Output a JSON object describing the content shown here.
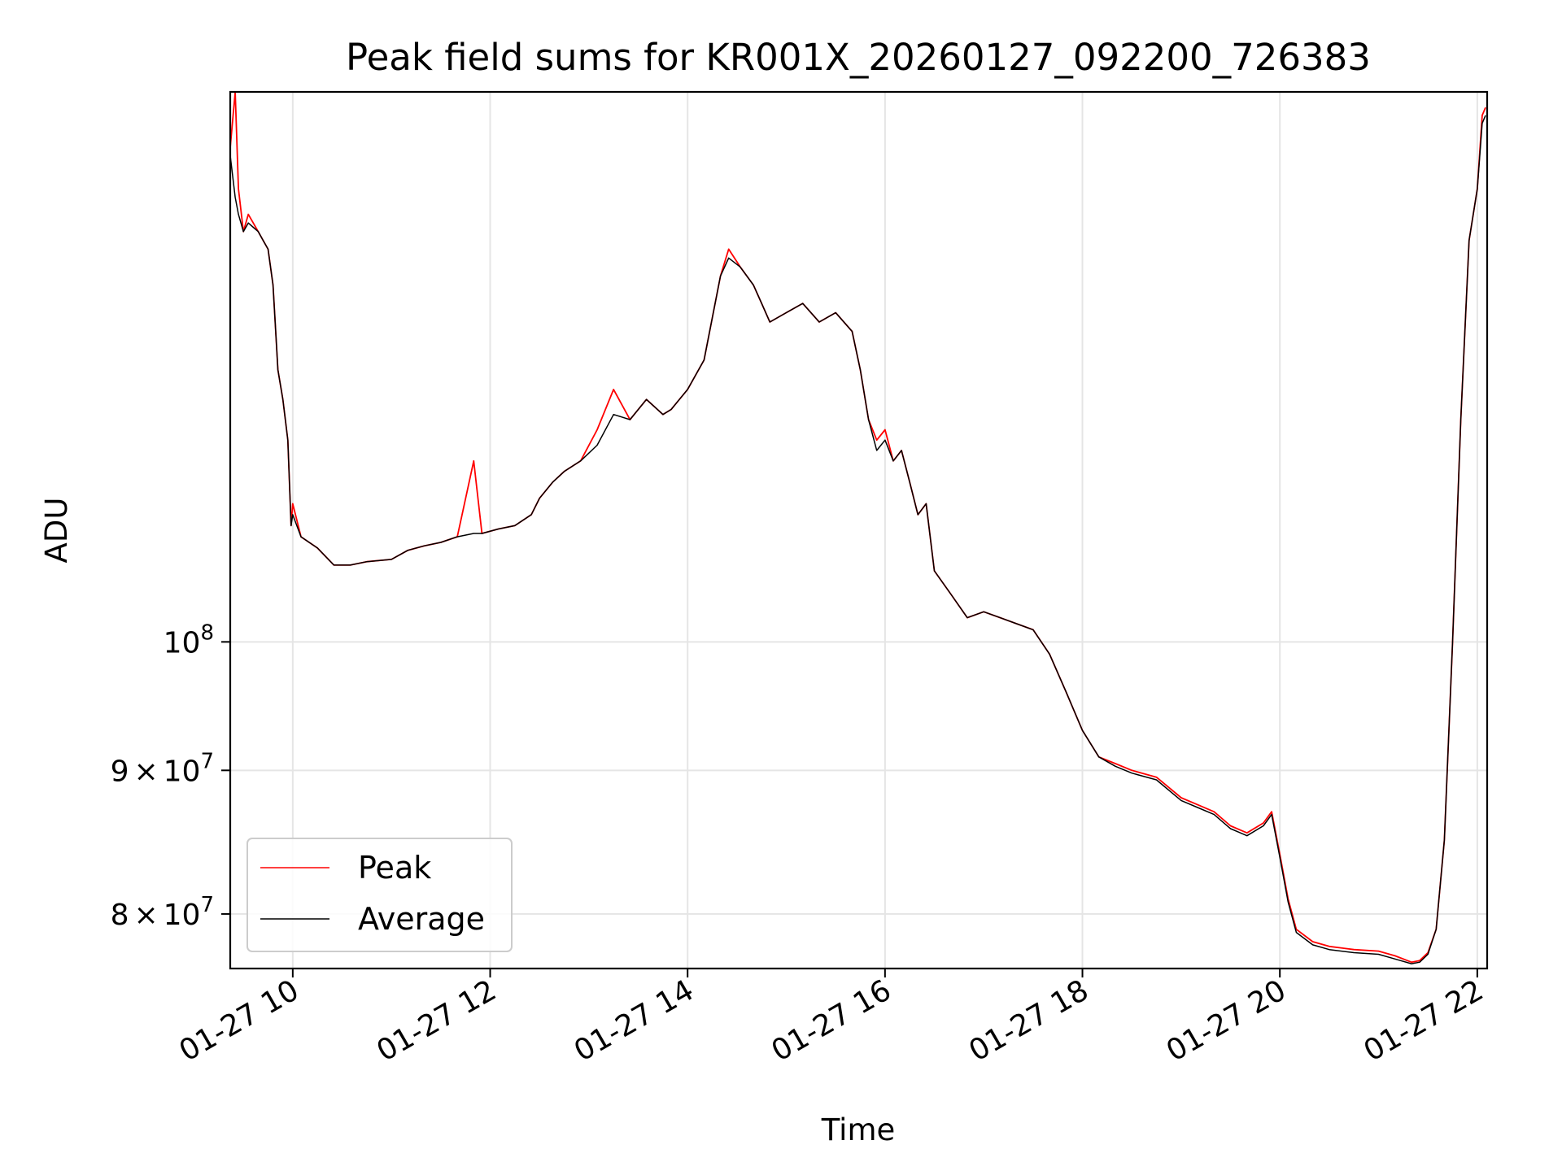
{
  "chart_data": {
    "type": "line",
    "title": "Peak field sums for KR001X_20260127_092200_726383",
    "xlabel": "Time",
    "ylabel": "ADU",
    "x_type": "time",
    "xlim": [
      "2026-01-27 09:22",
      "2026-01-27 22:06"
    ],
    "x_ticks": [
      {
        "at": "2026-01-27 10:00",
        "label": "01-27 10"
      },
      {
        "at": "2026-01-27 12:00",
        "label": "01-27 12"
      },
      {
        "at": "2026-01-27 14:00",
        "label": "01-27 14"
      },
      {
        "at": "2026-01-27 16:00",
        "label": "01-27 16"
      },
      {
        "at": "2026-01-27 18:00",
        "label": "01-27 18"
      },
      {
        "at": "2026-01-27 20:00",
        "label": "01-27 20"
      },
      {
        "at": "2026-01-27 22:00",
        "label": "01-27 22"
      }
    ],
    "y_scale": "log",
    "ylim": [
      76500000,
      157000000
    ],
    "y_ticks": [
      {
        "value": 80000000,
        "mantissa": "8",
        "base": "10",
        "exponent": "7"
      },
      {
        "value": 90000000,
        "mantissa": "9",
        "base": "10",
        "exponent": "7"
      },
      {
        "value": 100000000,
        "mantissa": "",
        "base": "10",
        "exponent": "8"
      }
    ],
    "grid": true,
    "legend": {
      "position": "lower-left"
    },
    "colors": {
      "peak": "#ff0000",
      "average": "#000000",
      "grid": "#e5e5e5"
    },
    "x": [
      "2026-01-27 09:22",
      "2026-01-27 09:25",
      "2026-01-27 09:27",
      "2026-01-27 09:30",
      "2026-01-27 09:33",
      "2026-01-27 09:36",
      "2026-01-27 09:39",
      "2026-01-27 09:42",
      "2026-01-27 09:45",
      "2026-01-27 09:48",
      "2026-01-27 09:51",
      "2026-01-27 09:54",
      "2026-01-27 09:57",
      "2026-01-27 09:59",
      "2026-01-27 10:00",
      "2026-01-27 10:05",
      "2026-01-27 10:15",
      "2026-01-27 10:25",
      "2026-01-27 10:35",
      "2026-01-27 10:45",
      "2026-01-27 11:00",
      "2026-01-27 11:10",
      "2026-01-27 11:20",
      "2026-01-27 11:30",
      "2026-01-27 11:40",
      "2026-01-27 11:50",
      "2026-01-27 11:55",
      "2026-01-27 12:05",
      "2026-01-27 12:15",
      "2026-01-27 12:25",
      "2026-01-27 12:30",
      "2026-01-27 12:38",
      "2026-01-27 12:45",
      "2026-01-27 12:55",
      "2026-01-27 13:05",
      "2026-01-27 13:15",
      "2026-01-27 13:25",
      "2026-01-27 13:35",
      "2026-01-27 13:45",
      "2026-01-27 13:50",
      "2026-01-27 13:55",
      "2026-01-27 14:00",
      "2026-01-27 14:10",
      "2026-01-27 14:20",
      "2026-01-27 14:25",
      "2026-01-27 14:32",
      "2026-01-27 14:40",
      "2026-01-27 14:45",
      "2026-01-27 14:50",
      "2026-01-27 15:00",
      "2026-01-27 15:10",
      "2026-01-27 15:20",
      "2026-01-27 15:30",
      "2026-01-27 15:40",
      "2026-01-27 15:45",
      "2026-01-27 15:50",
      "2026-01-27 15:55",
      "2026-01-27 16:00",
      "2026-01-27 16:05",
      "2026-01-27 16:10",
      "2026-01-27 16:15",
      "2026-01-27 16:20",
      "2026-01-27 16:25",
      "2026-01-27 16:30",
      "2026-01-27 16:40",
      "2026-01-27 16:50",
      "2026-01-27 17:00",
      "2026-01-27 17:10",
      "2026-01-27 17:20",
      "2026-01-27 17:30",
      "2026-01-27 17:40",
      "2026-01-27 17:50",
      "2026-01-27 18:00",
      "2026-01-27 18:10",
      "2026-01-27 18:20",
      "2026-01-27 18:30",
      "2026-01-27 18:45",
      "2026-01-27 19:00",
      "2026-01-27 19:10",
      "2026-01-27 19:20",
      "2026-01-27 19:30",
      "2026-01-27 19:40",
      "2026-01-27 19:50",
      "2026-01-27 19:55",
      "2026-01-27 20:00",
      "2026-01-27 20:05",
      "2026-01-27 20:10",
      "2026-01-27 20:20",
      "2026-01-27 20:30",
      "2026-01-27 20:45",
      "2026-01-27 21:00",
      "2026-01-27 21:10",
      "2026-01-27 21:20",
      "2026-01-27 21:25",
      "2026-01-27 21:30",
      "2026-01-27 21:35",
      "2026-01-27 21:40",
      "2026-01-27 21:45",
      "2026-01-27 21:50",
      "2026-01-27 21:55",
      "2026-01-27 22:00",
      "2026-01-27 22:03",
      "2026-01-27 22:05"
    ],
    "series": [
      {
        "name": "Peak",
        "color": "#ff0000",
        "values": [
          150000000,
          157000000,
          145000000,
          140000000,
          142000000,
          141000000,
          140000000,
          139000000,
          138000000,
          134000000,
          125000000,
          122000000,
          118000000,
          110000000,
          112000000,
          109000000,
          108000000,
          106500000,
          106500000,
          106800000,
          107000000,
          107800000,
          108200000,
          108500000,
          109000000,
          116000000,
          109300000,
          109700000,
          110000000,
          111000000,
          112500000,
          114000000,
          115000000,
          116000000,
          119000000,
          123000000,
          120000000,
          122000000,
          120500000,
          121000000,
          122000000,
          123000000,
          126000000,
          135000000,
          138000000,
          136000000,
          134000000,
          132000000,
          130000000,
          131000000,
          132000000,
          130000000,
          131000000,
          129000000,
          125000000,
          120000000,
          118000000,
          119000000,
          116000000,
          117000000,
          114000000,
          111000000,
          112000000,
          106000000,
          104000000,
          102000000,
          102500000,
          102000000,
          101500000,
          101000000,
          99000000,
          96000000,
          93000000,
          91000000,
          90500000,
          90000000,
          89500000,
          88000000,
          87500000,
          87000000,
          86000000,
          85500000,
          86200000,
          87000000,
          84000000,
          81000000,
          79000000,
          78200000,
          77900000,
          77700000,
          77600000,
          77300000,
          76900000,
          77000000,
          77500000,
          79000000,
          85000000,
          100000000,
          120000000,
          139000000,
          145000000,
          154000000,
          155000000
        ]
      },
      {
        "name": "Average",
        "color": "#000000",
        "values": [
          149000000,
          144000000,
          142000000,
          140000000,
          141000000,
          140500000,
          140000000,
          139000000,
          138000000,
          134000000,
          125000000,
          122000000,
          118000000,
          110000000,
          111000000,
          109000000,
          108000000,
          106500000,
          106500000,
          106800000,
          107000000,
          107800000,
          108200000,
          108500000,
          109000000,
          109300000,
          109300000,
          109700000,
          110000000,
          111000000,
          112500000,
          114000000,
          115000000,
          116000000,
          117500000,
          120500000,
          120000000,
          122000000,
          120500000,
          121000000,
          122000000,
          123000000,
          126000000,
          135000000,
          137000000,
          136000000,
          134000000,
          132000000,
          130000000,
          131000000,
          132000000,
          130000000,
          131000000,
          129000000,
          125000000,
          120000000,
          117000000,
          118000000,
          116000000,
          117000000,
          114000000,
          111000000,
          112000000,
          106000000,
          104000000,
          102000000,
          102500000,
          102000000,
          101500000,
          101000000,
          99000000,
          96000000,
          93000000,
          91000000,
          90300000,
          89800000,
          89300000,
          87800000,
          87300000,
          86800000,
          85800000,
          85300000,
          86000000,
          86800000,
          83800000,
          80800000,
          78800000,
          78000000,
          77700000,
          77500000,
          77400000,
          77100000,
          76800000,
          76900000,
          77400000,
          79000000,
          85000000,
          100000000,
          120000000,
          139000000,
          145000000,
          153000000,
          154000000
        ]
      }
    ]
  }
}
